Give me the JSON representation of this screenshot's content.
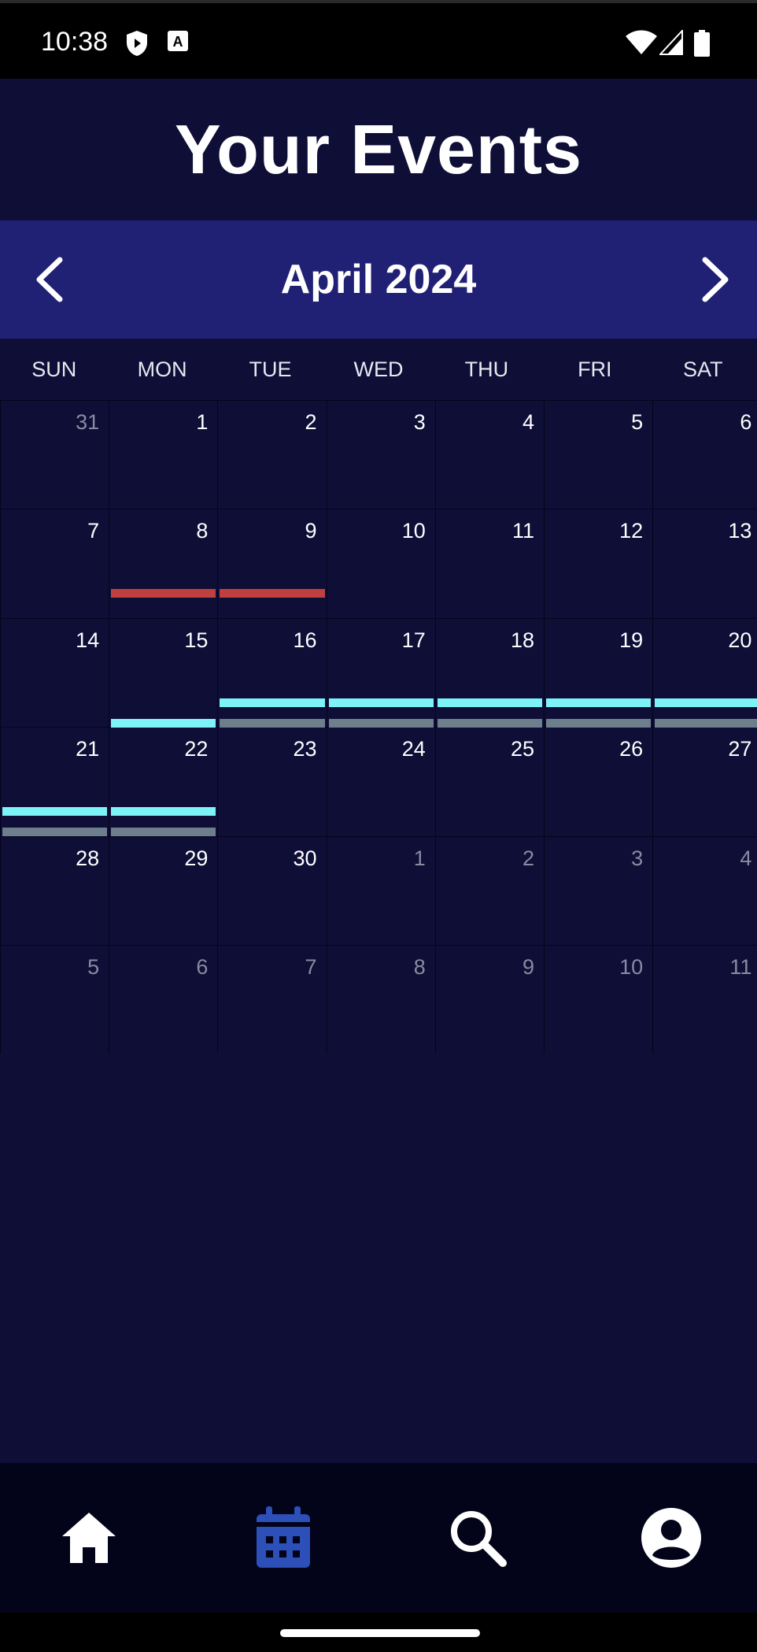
{
  "status_bar": {
    "time": "10:38",
    "icons": [
      "shield-play-icon",
      "text-a-icon",
      "wifi-icon",
      "signal-icon",
      "battery-icon"
    ]
  },
  "header": {
    "title": "Your Events"
  },
  "calendar": {
    "month_label": "April 2024",
    "weekdays": [
      "SUN",
      "MON",
      "TUE",
      "WED",
      "THU",
      "FRI",
      "SAT"
    ],
    "weeks": [
      [
        {
          "d": "31",
          "m": false
        },
        {
          "d": "1",
          "m": true
        },
        {
          "d": "2",
          "m": true
        },
        {
          "d": "3",
          "m": true
        },
        {
          "d": "4",
          "m": true
        },
        {
          "d": "5",
          "m": true
        },
        {
          "d": "6",
          "m": true
        }
      ],
      [
        {
          "d": "7",
          "m": true
        },
        {
          "d": "8",
          "m": true
        },
        {
          "d": "9",
          "m": true
        },
        {
          "d": "10",
          "m": true
        },
        {
          "d": "11",
          "m": true
        },
        {
          "d": "12",
          "m": true
        },
        {
          "d": "13",
          "m": true
        }
      ],
      [
        {
          "d": "14",
          "m": true
        },
        {
          "d": "15",
          "m": true
        },
        {
          "d": "16",
          "m": true
        },
        {
          "d": "17",
          "m": true
        },
        {
          "d": "18",
          "m": true
        },
        {
          "d": "19",
          "m": true
        },
        {
          "d": "20",
          "m": true
        }
      ],
      [
        {
          "d": "21",
          "m": true
        },
        {
          "d": "22",
          "m": true
        },
        {
          "d": "23",
          "m": true
        },
        {
          "d": "24",
          "m": true
        },
        {
          "d": "25",
          "m": true
        },
        {
          "d": "26",
          "m": true
        },
        {
          "d": "27",
          "m": true
        }
      ],
      [
        {
          "d": "28",
          "m": true
        },
        {
          "d": "29",
          "m": true
        },
        {
          "d": "30",
          "m": true
        },
        {
          "d": "1",
          "m": false
        },
        {
          "d": "2",
          "m": false
        },
        {
          "d": "3",
          "m": false
        },
        {
          "d": "4",
          "m": false
        }
      ],
      [
        {
          "d": "5",
          "m": false
        },
        {
          "d": "6",
          "m": false
        },
        {
          "d": "7",
          "m": false
        },
        {
          "d": "8",
          "m": false
        },
        {
          "d": "9",
          "m": false
        },
        {
          "d": "10",
          "m": false
        },
        {
          "d": "11",
          "m": false
        }
      ]
    ],
    "events": [
      {
        "week": 1,
        "start": 1,
        "end": 2,
        "lane": 0,
        "color": "#c0403f"
      },
      {
        "week": 2,
        "start": 2,
        "end": 6,
        "lane": 0,
        "color": "#7ef3f7"
      },
      {
        "week": 2,
        "start": 1,
        "end": 1,
        "lane": 1,
        "color": "#7ef3f7"
      },
      {
        "week": 2,
        "start": 2,
        "end": 6,
        "lane": 1,
        "color": "#6d7f8d"
      },
      {
        "week": 3,
        "start": 0,
        "end": 1,
        "lane": 0,
        "color": "#7ef3f7"
      },
      {
        "week": 3,
        "start": 0,
        "end": 1,
        "lane": 1,
        "color": "#6d7f8d"
      }
    ],
    "colors": {
      "background": "#0e0e37",
      "month_bar": "#202174"
    }
  },
  "bottom_nav": {
    "items": [
      {
        "name": "home",
        "icon": "home-icon",
        "active": false
      },
      {
        "name": "calendar",
        "icon": "calendar-icon",
        "active": true
      },
      {
        "name": "search",
        "icon": "search-icon",
        "active": false
      },
      {
        "name": "profile",
        "icon": "profile-icon",
        "active": false
      }
    ],
    "active_color": "#2c4fb8"
  }
}
